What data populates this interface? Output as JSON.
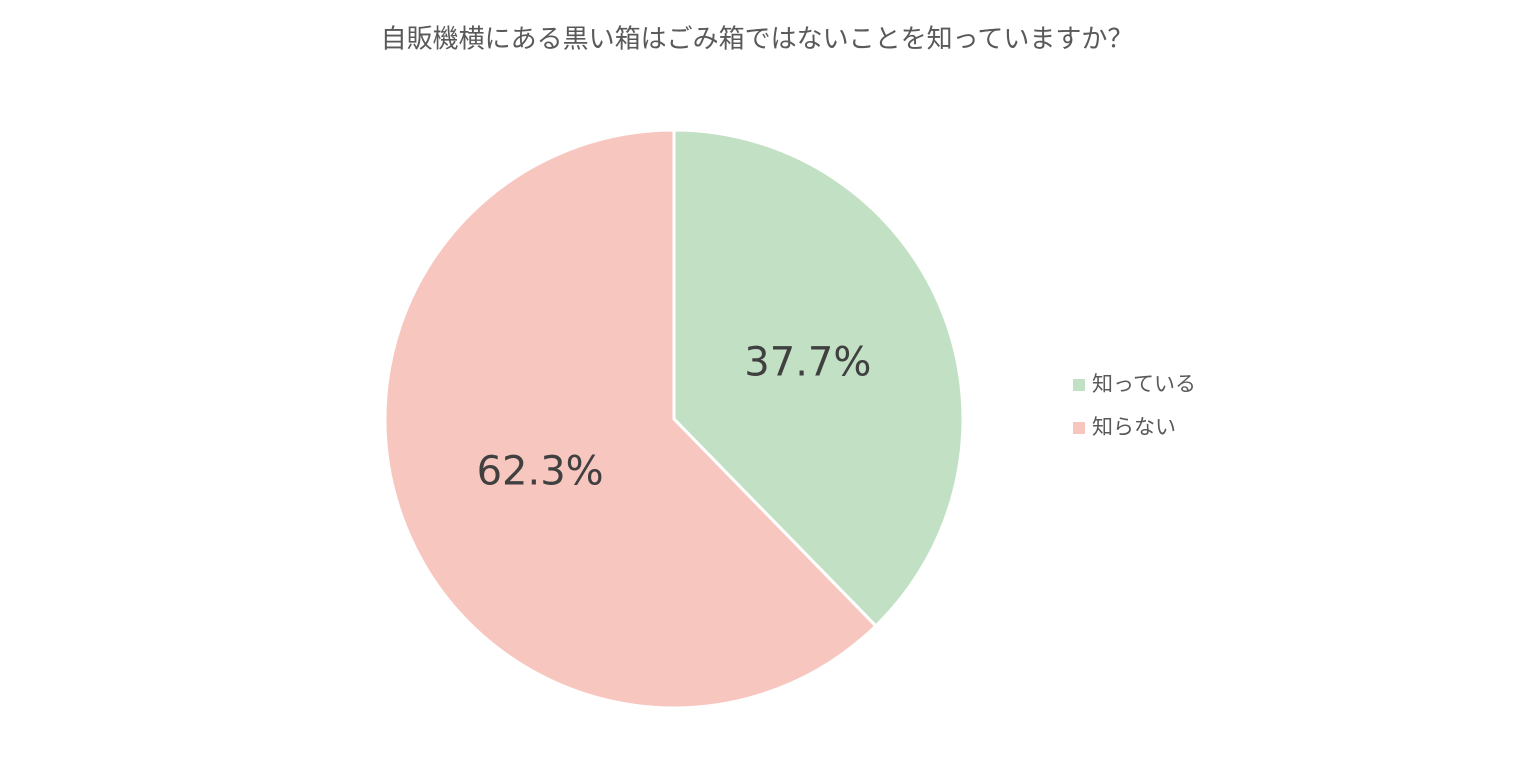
{
  "chart_data": {
    "type": "pie",
    "title": "自販機横にある黒い箱はごみ箱ではないことを知っていますか？",
    "categories": [
      "知っている",
      "知らない"
    ],
    "values": [
      37.7,
      62.3
    ],
    "value_labels": [
      "37.7%",
      "62.3%"
    ],
    "colors": [
      "#c2e0c4",
      "#f7c6bf"
    ],
    "legend": "right"
  }
}
